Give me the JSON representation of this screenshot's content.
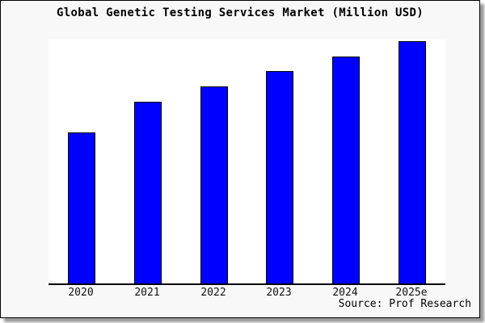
{
  "title": "Global Genetic Testing Services Market (Million USD)",
  "source_credit": "Source: Prof Research",
  "colors": {
    "bar_fill": "#0000ff",
    "bar_border": "#000000",
    "plot_background": "#ffffff",
    "figure_background": "#f8f8f8",
    "axis_line": "#000000",
    "title_text": "#000000"
  },
  "chart_data": {
    "type": "bar",
    "title": "Global Genetic Testing Services Market (Million USD)",
    "categories": [
      "2020",
      "2021",
      "2022",
      "2023",
      "2024",
      "2025e"
    ],
    "values": [
      62.3,
      75.0,
      81.3,
      87.7,
      93.7,
      100.0
    ],
    "value_scale": "relative bar height, tallest bar (2025e) = 100; chart displays no numeric y-axis or data labels",
    "xlabel": "",
    "ylabel": "",
    "ylim": [
      0,
      100
    ],
    "grid": false,
    "legend": false,
    "y_axis_tick_labels_visible": false,
    "annotations": [
      "Source: Prof Research"
    ]
  }
}
